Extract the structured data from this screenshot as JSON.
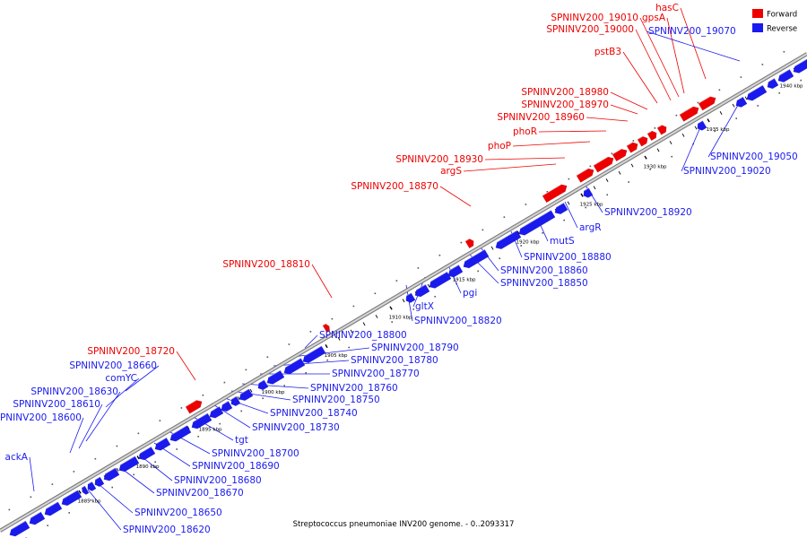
{
  "caption": "Streptococcus pneumoniae INV200 genome. - 0..2093317",
  "legend": [
    {
      "label": "Forward",
      "color": "#ee0000"
    },
    {
      "label": "Reverse",
      "color": "#1a1aee"
    }
  ],
  "colors": {
    "forward": "#ee0000",
    "reverse": "#1a1aee",
    "backbone": "#9a9a9a"
  },
  "ticks": [
    "1885 kbp",
    "1890 kbp",
    "1895 kbp",
    "1900 kbp",
    "1905 kbp",
    "1910 kbp",
    "1915 kbp",
    "1920 kbp",
    "1925 kbp",
    "1930 kbp",
    "1935 kbp",
    "1940 kbp"
  ],
  "forward_labels": [
    "hasC",
    "SPNINV200_19010",
    "gpsA",
    "SPNINV200_19000",
    "pstB3",
    "SPNINV200_18980",
    "SPNINV200_18970",
    "SPNINV200_18960",
    "phoR",
    "phoP",
    "SPNINV200_18930",
    "argS",
    "SPNINV200_18870",
    "SPNINV200_18810",
    "SPNINV200_18720"
  ],
  "reverse_labels": [
    "SPNINV200_19070",
    "SPNINV200_19050",
    "SPNINV200_19020",
    "SPNINV200_18920",
    "argR",
    "mutS",
    "SPNINV200_18880",
    "SPNINV200_18860",
    "SPNINV200_18850",
    "pgi",
    "gltX",
    "SPNINV200_18820",
    "SPNINV200_18800",
    "SPNINV200_18790",
    "SPNINV200_18780",
    "SPNINV200_18770",
    "SPNINV200_18760",
    "SPNINV200_18750",
    "SPNINV200_18740",
    "SPNINV200_18730",
    "tgt",
    "SPNINV200_18700",
    "SPNINV200_18690",
    "SPNINV200_18680",
    "SPNINV200_18670",
    "SPNINV200_18660",
    "comYC",
    "SPNINV200_18630",
    "SPNINV200_18610",
    "SPNINV200_18600",
    "SPNINV200_18650",
    "SPNINV200_18620",
    "ackA"
  ]
}
